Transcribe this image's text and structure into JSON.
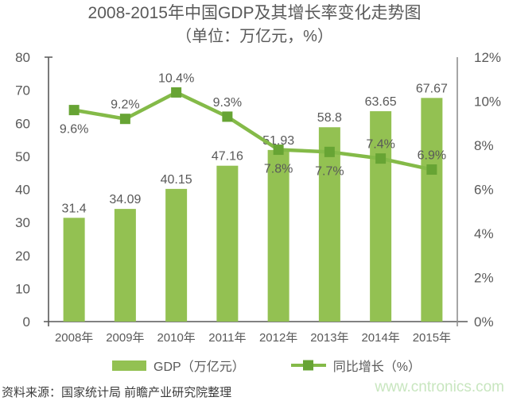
{
  "title": {
    "line1": "2008-2015年中国GDP及其增长率变化走势图",
    "line2": "（单位：万亿元，%）"
  },
  "chart_data": {
    "type": "bar+line combo",
    "title": "2008-2015年中国GDP及其增长率变化走势图（单位：万亿元，%）",
    "categories": [
      "2008年",
      "2009年",
      "2010年",
      "2011年",
      "2012年",
      "2013年",
      "2014年",
      "2015年"
    ],
    "series": [
      {
        "name": "GDP（万亿元）",
        "type": "bar",
        "axis": "left",
        "values": [
          31.4,
          34.09,
          40.15,
          47.16,
          51.93,
          58.8,
          63.65,
          67.67
        ],
        "labels": [
          "31.4",
          "34.09",
          "40.15",
          "47.16",
          "51.93",
          "58.8",
          "63.65",
          "67.67"
        ]
      },
      {
        "name": "同比增长（%）",
        "type": "line",
        "axis": "right",
        "values": [
          9.6,
          9.2,
          10.4,
          9.3,
          7.8,
          7.7,
          7.4,
          6.9
        ],
        "labels": [
          "9.6%",
          "9.2%",
          "10.4%",
          "9.3%",
          "7.8%",
          "7.7%",
          "7.4%",
          "6.9%"
        ],
        "label_position": [
          "below",
          "above",
          "above",
          "above",
          "below",
          "below",
          "above",
          "above"
        ]
      }
    ],
    "left_axis": {
      "min": 0,
      "max": 80,
      "step": 10,
      "ticks": [
        "0",
        "10",
        "20",
        "30",
        "40",
        "50",
        "60",
        "70",
        "80"
      ]
    },
    "right_axis": {
      "min": 0,
      "max": 12,
      "step": 2,
      "ticks": [
        "0%",
        "2%",
        "4%",
        "6%",
        "8%",
        "10%",
        "12%"
      ]
    },
    "grid": false,
    "legend_position": "bottom"
  },
  "legend": {
    "gdp": "GDP（万亿元）",
    "growth": "同比增长（%）"
  },
  "footer": {
    "source": "资料来源：国家统计局 前瞻产业研究院整理",
    "watermark": "www.cntronics.com"
  },
  "colors": {
    "bar": "#93c152",
    "line": "#84ba48",
    "marker": "#67a434",
    "text": "#595959",
    "axis": "#595959",
    "right_axis": "#909090",
    "source_text": "#3c3c3c",
    "watermark": "#c8e6bf"
  }
}
